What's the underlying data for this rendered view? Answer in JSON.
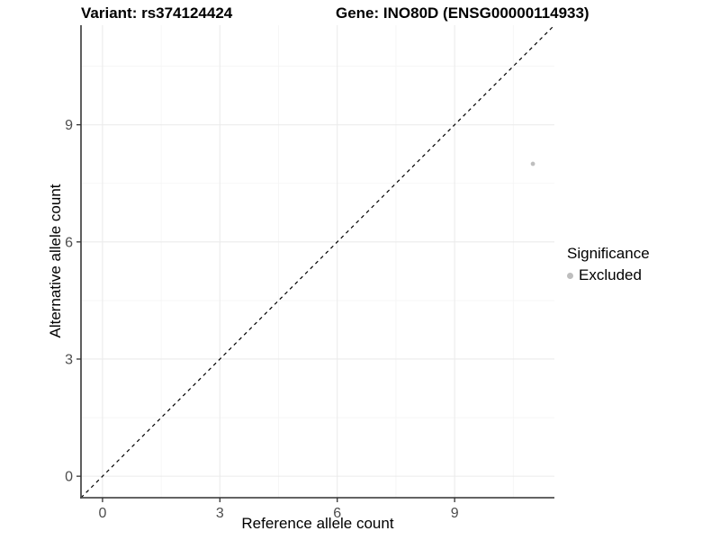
{
  "header": {
    "variant_title": "Variant: rs374124424",
    "gene_title": "Gene: INO80D (ENSG00000114933)"
  },
  "axes": {
    "x_label": "Reference allele count",
    "y_label": "Alternative allele count"
  },
  "legend": {
    "title": "Significance",
    "items": [
      {
        "label": "Excluded",
        "color": "#bebebe"
      }
    ]
  },
  "colors": {
    "background": "#ffffff",
    "grid_major": "#ebebeb",
    "grid_minor": "#f5f5f5",
    "axis_line": "#4d4d4d",
    "tick_mark": "#333333",
    "tick_label": "#4d4d4d",
    "reference_line": "#000000",
    "point": "#bebebe"
  },
  "chart_data": {
    "type": "scatter",
    "title": "Variant: rs374124424 | Gene: INO80D (ENSG00000114933)",
    "xlabel": "Reference allele count",
    "ylabel": "Alternative allele count",
    "xlim": [
      -0.55,
      11.55
    ],
    "ylim": [
      -0.55,
      11.55
    ],
    "x_ticks": [
      0,
      3,
      6,
      9
    ],
    "y_ticks": [
      0,
      3,
      6,
      9
    ],
    "x_minor": [
      1.5,
      4.5,
      7.5,
      10.5
    ],
    "y_minor": [
      1.5,
      4.5,
      7.5,
      10.5
    ],
    "grid": "on",
    "legend_position": "right",
    "series": [
      {
        "name": "Excluded",
        "color": "#bebebe",
        "points": [
          {
            "x": 11,
            "y": 8
          }
        ]
      }
    ],
    "reference_line": {
      "kind": "identity",
      "slope": 1,
      "intercept": 0,
      "linestyle": "dashed",
      "color": "#000000"
    }
  }
}
